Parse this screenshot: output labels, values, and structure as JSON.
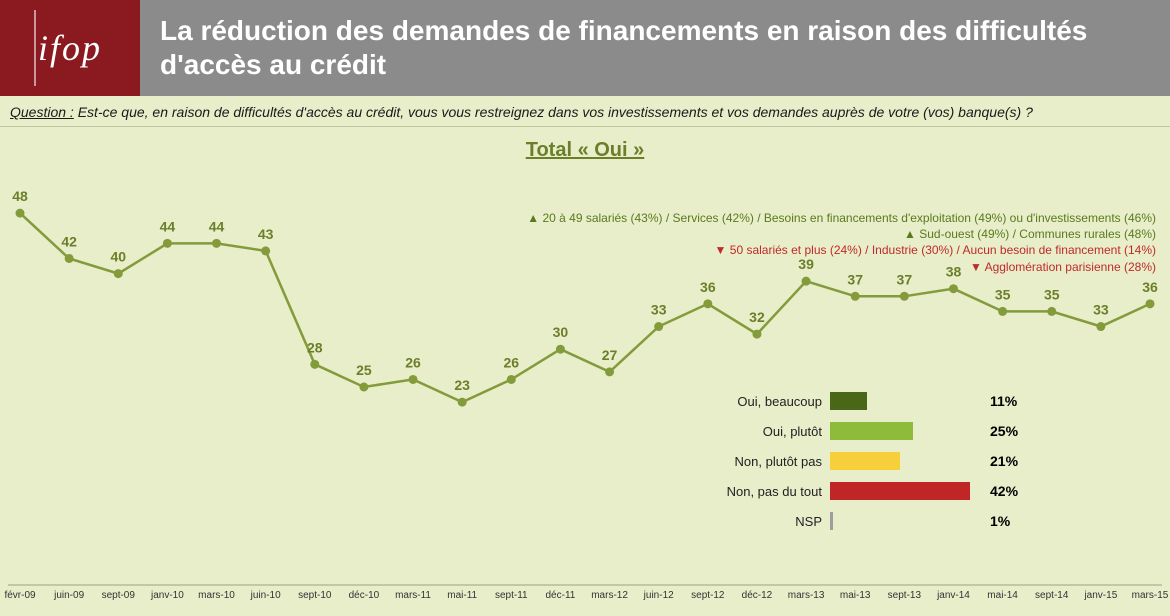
{
  "logo": "ifop",
  "title": "La réduction des demandes de financements en raison des difficultés d'accès au crédit",
  "question_label": "Question :",
  "question_body": "Est-ce que, en raison de difficultés d'accès au crédit, vous vous restreignez dans vos investissements et vos demandes auprès de votre (vos) banque(s) ?",
  "chart_title": "Total « Oui »",
  "colors": {
    "background": "#e8edca",
    "header_logo_bg": "#8a1a1f",
    "header_title_bg": "#8b8b8b",
    "line_color": "#839b3a",
    "label_color": "#6b7f2a",
    "annotation_up": "#5a7a1e",
    "annotation_down": "#c02a2a"
  },
  "line_chart": {
    "type": "line",
    "y_min_plot": 0,
    "y_max_plot": 50,
    "line_width": 2.5,
    "marker_size": 4.5,
    "x_labels": [
      "févr-09",
      "juin-09",
      "sept-09",
      "janv-10",
      "mars-10",
      "juin-10",
      "sept-10",
      "déc-10",
      "mars-11",
      "mai-11",
      "sept-11",
      "déc-11",
      "mars-12",
      "juin-12",
      "sept-12",
      "déc-12",
      "mars-13",
      "mai-13",
      "sept-13",
      "janv-14",
      "mai-14",
      "sept-14",
      "janv-15",
      "mars-15"
    ],
    "values": [
      48,
      42,
      40,
      44,
      44,
      43,
      28,
      25,
      26,
      23,
      26,
      30,
      27,
      33,
      36,
      32,
      39,
      37,
      37,
      38,
      35,
      35,
      33,
      36
    ]
  },
  "annotations": {
    "up": [
      "20 à 49 salariés (43%) / Services (42%) / Besoins en financements d'exploitation (49%) ou d'investissements (46%)",
      "Sud-ouest (49%) / Communes rurales (48%)"
    ],
    "down": [
      "50 salariés et plus (24%) / Industrie (30%) / Aucun besoin de financement (14%)",
      "Agglomération parisienne (28%)"
    ]
  },
  "bar_chart": {
    "type": "bar",
    "max_pct": 45,
    "rows": [
      {
        "label": "Oui, beaucoup",
        "value": 11,
        "color": "#4a6617"
      },
      {
        "label": "Oui, plutôt",
        "value": 25,
        "color": "#8fbb3a"
      },
      {
        "label": "Non, plutôt pas",
        "value": 21,
        "color": "#f6cf3a"
      },
      {
        "label": "Non, pas du tout",
        "value": 42,
        "color": "#c02626"
      },
      {
        "label": "NSP",
        "value": 1,
        "color": "#9e9e9e"
      }
    ]
  }
}
